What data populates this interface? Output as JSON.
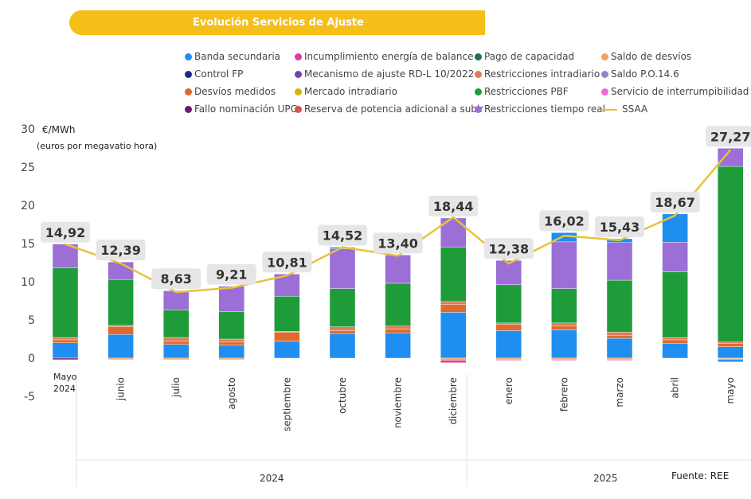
{
  "chart_data": {
    "type": "bar",
    "title": "Evolución Servicios de Ajuste",
    "ylabel": "€/MWh",
    "ylabel_sub": "(euros por megavatio hora)",
    "ylim": [
      -5,
      30
    ],
    "yticks": [
      -5,
      0,
      5,
      10,
      15,
      20,
      25,
      30
    ],
    "source": "Fuente: REE",
    "first_month_label": [
      "Mayo",
      "2024"
    ],
    "categories": [
      "",
      "junio",
      "julio",
      "agosto",
      "septiembre",
      "octubre",
      "noviembre",
      "diciembre",
      "enero",
      "febrero",
      "marzo",
      "abril",
      "mayo"
    ],
    "years": [
      {
        "label": "2024"
      },
      {
        "label": "2025"
      }
    ],
    "legend": [
      {
        "name": "Banda secundaria",
        "color": "#1f8ef1",
        "kind": "dot"
      },
      {
        "name": "Incumplimiento energía de balance",
        "color": "#d43fa0",
        "kind": "dot"
      },
      {
        "name": "Pago de capacidad",
        "color": "#1f6e5e",
        "kind": "dot"
      },
      {
        "name": "Saldo de desvíos",
        "color": "#f4a261",
        "kind": "dot"
      },
      {
        "name": "Control FP",
        "color": "#1b2a8a",
        "kind": "dot"
      },
      {
        "name": "Mecanismo de ajuste RD-L 10/2022",
        "color": "#7b3fb0",
        "kind": "dot"
      },
      {
        "name": "Restricciones intradiario",
        "color": "#e07b5a",
        "kind": "dot"
      },
      {
        "name": "Saldo P.O.14.6",
        "color": "#8e86c8",
        "kind": "dot"
      },
      {
        "name": "Desvíos medidos",
        "color": "#e06a2e",
        "kind": "dot"
      },
      {
        "name": "Mercado intradiario",
        "color": "#d4b400",
        "kind": "dot"
      },
      {
        "name": "Restricciones PBF",
        "color": "#1f9c3a",
        "kind": "dot"
      },
      {
        "name": "Servicio de interrumpibilidad",
        "color": "#f26bd1",
        "kind": "dot"
      },
      {
        "name": "Fallo nominación UPG",
        "color": "#6b1a6b",
        "kind": "dot"
      },
      {
        "name": "Reserva de potencia adicional a subir",
        "color": "#d9534f",
        "kind": "dot"
      },
      {
        "name": "Restricciones tiempo real",
        "color": "#9b6fd6",
        "kind": "dot"
      },
      {
        "name": "SSAA",
        "color": "#e8c33a",
        "kind": "line"
      }
    ],
    "series": [
      {
        "name": "Banda secundaria",
        "color": "#1f8ef1",
        "values": [
          2.0,
          3.1,
          1.8,
          1.7,
          2.2,
          3.2,
          3.3,
          6.0,
          3.6,
          3.7,
          2.6,
          1.9,
          1.5
        ]
      },
      {
        "name": "Desvíos medidos",
        "color": "#e06a2e",
        "values": [
          0.4,
          1.0,
          0.4,
          0.4,
          1.2,
          0.4,
          0.5,
          1.0,
          0.8,
          0.5,
          0.4,
          0.5,
          0.4
        ]
      },
      {
        "name": "Restricciones intradiario",
        "color": "#e07b5a",
        "values": [
          0.3,
          0.2,
          0.5,
          0.4,
          0.1,
          0.5,
          0.4,
          0.4,
          0.2,
          0.4,
          0.4,
          0.3,
          0.2
        ]
      },
      {
        "name": "Restricciones PBF",
        "color": "#1f9c3a",
        "values": [
          9.1,
          6.0,
          3.6,
          3.6,
          4.6,
          5.0,
          5.6,
          7.1,
          5.0,
          4.5,
          6.8,
          8.6,
          23.0
        ]
      },
      {
        "name": "Restricciones tiempo real",
        "color": "#9b6fd6",
        "values": [
          3.12,
          2.29,
          2.53,
          3.31,
          2.91,
          5.22,
          3.7,
          3.84,
          3.18,
          6.12,
          4.93,
          3.87,
          2.37
        ]
      },
      {
        "name": "Banda secundaria (superior)",
        "color": "#1f8ef1",
        "values": [
          0,
          0,
          0,
          0,
          0,
          0.2,
          0,
          0,
          0,
          1.2,
          0.5,
          3.7,
          0
        ]
      },
      {
        "name": "Saldo de desvíos",
        "color": "#f4a261",
        "values": [
          0.0,
          -0.2,
          -0.2,
          -0.2,
          0.0,
          0.0,
          0.0,
          -0.3,
          -0.2,
          -0.2,
          -0.2,
          0.0,
          -0.1
        ]
      },
      {
        "name": "Incumplimiento energía de balance",
        "color": "#d43fa0",
        "values": [
          0.0,
          0.0,
          0.0,
          0.0,
          0.0,
          0.0,
          0.0,
          -0.3,
          -0.1,
          -0.1,
          -0.1,
          0.0,
          -0.1
        ]
      },
      {
        "name": "Banda secundaria (negativo)",
        "color": "#1f8ef1",
        "values": [
          0.0,
          0.0,
          0.0,
          0.0,
          0.0,
          0.0,
          0.0,
          0.0,
          0.0,
          0.0,
          0.0,
          0.0,
          -0.3
        ]
      },
      {
        "name": "Fallo nominación UPG",
        "color": "#6b1a6b",
        "values": [
          -0.2,
          0.0,
          0.0,
          0.0,
          0.0,
          0.0,
          0.0,
          0.0,
          0.0,
          0.0,
          0.0,
          0.0,
          0.0
        ]
      }
    ],
    "ssaa": [
      14.92,
      12.39,
      8.63,
      9.21,
      10.81,
      14.52,
      13.4,
      18.44,
      12.38,
      16.02,
      15.43,
      18.67,
      27.27
    ],
    "ssaa_labels": [
      "14,92",
      "12,39",
      "8,63",
      "9,21",
      "10,81",
      "14,52",
      "13,40",
      "18,44",
      "12,38",
      "16,02",
      "15,43",
      "18,67",
      "27,27"
    ],
    "colors": {
      "ssaa_line": "#e8c33a",
      "label_bg": "#e6e6e6",
      "grid": "#f0f0f0",
      "axis_text": "#444444",
      "title_bg": "#f5bf1a"
    }
  }
}
